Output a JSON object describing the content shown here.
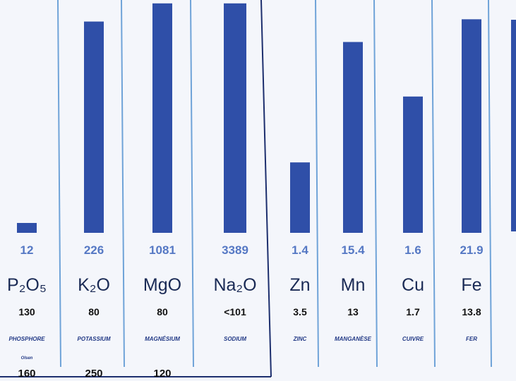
{
  "chart_data": {
    "type": "bar",
    "categories": [
      {
        "element": "P₂O₅",
        "name": "PHOSPHORE",
        "sub": "Olsen"
      },
      {
        "element": "K₂O",
        "name": "POTASSIUM",
        "sub": ""
      },
      {
        "element": "MgO",
        "name": "MAGNÉSIUM",
        "sub": ""
      },
      {
        "element": "Na₂O",
        "name": "SODIUM",
        "sub": ""
      },
      {
        "element": "Zn",
        "name": "ZINC",
        "sub": ""
      },
      {
        "element": "Mn",
        "name": "MANGANÈSE",
        "sub": ""
      },
      {
        "element": "Cu",
        "name": "CUIVRE",
        "sub": ""
      },
      {
        "element": "Fe",
        "name": "FER",
        "sub": ""
      }
    ],
    "values": [
      "12",
      "226",
      "1081",
      "3389",
      "1.4",
      "15.4",
      "1.6",
      "21.9"
    ],
    "bar_levels": [
      0.05,
      0.93,
      1.01,
      1.01,
      0.31,
      0.84,
      0.6,
      0.94
    ],
    "norm_low": [
      "130",
      "80",
      "80",
      "<101",
      "3.5",
      "13",
      "1.7",
      "13.8"
    ],
    "norm_high": [
      "160",
      "250",
      "120",
      "",
      "",
      "",
      "",
      ""
    ]
  },
  "colors": {
    "bar": "#2f4fa8",
    "value": "#5578c4",
    "divider": "#6fa3d8",
    "frame": "#1d2f6e"
  }
}
